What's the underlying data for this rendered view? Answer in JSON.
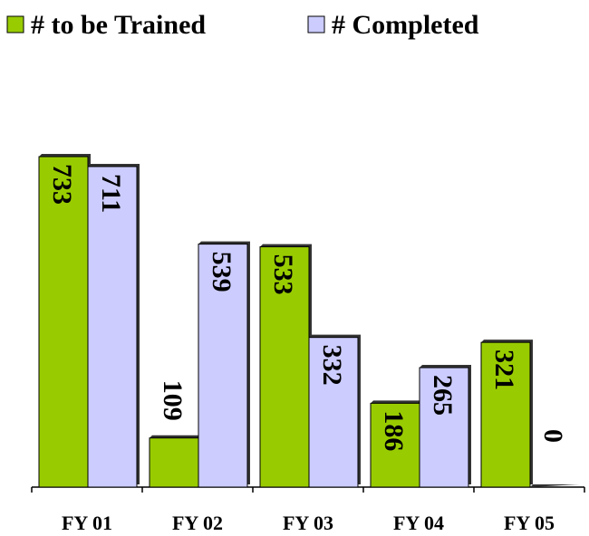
{
  "chart_data": {
    "type": "bar",
    "categories": [
      "FY 01",
      "FY 02",
      "FY 03",
      "FY 04",
      "FY 05"
    ],
    "series": [
      {
        "name": "# to be Trained",
        "color": "#99cc00",
        "values": [
          733,
          109,
          533,
          186,
          321
        ]
      },
      {
        "name": "# Completed",
        "color": "#ccccff",
        "values": [
          711,
          539,
          332,
          265,
          0
        ]
      }
    ],
    "legend": "top"
  }
}
